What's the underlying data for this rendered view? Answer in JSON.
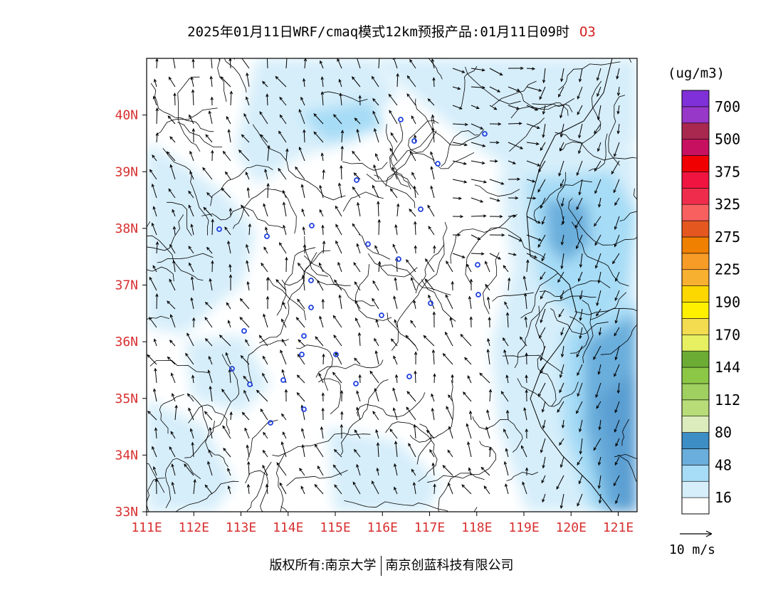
{
  "title": {
    "main": "2025年01月11日WRF/cmaq模式12km预报产品:01月11日09时",
    "species": "O3"
  },
  "map": {
    "lon_range": [
      111,
      121.4
    ],
    "lat_range": [
      33,
      41
    ],
    "lon_ticks": [
      "111E",
      "112E",
      "113E",
      "114E",
      "115E",
      "116E",
      "117E",
      "118E",
      "119E",
      "120E",
      "121E"
    ],
    "lat_ticks": [
      "33N",
      "34N",
      "35N",
      "36N",
      "37N",
      "38N",
      "39N",
      "40N"
    ],
    "stations_color": "#2040e0"
  },
  "colorbar": {
    "unit": "(ug/m3)",
    "colors": [
      "#ffffff",
      "#d6eefa",
      "#a6dcf6",
      "#6aaedc",
      "#3e8ec6",
      "#dcecbc",
      "#b8dc78",
      "#a0d060",
      "#8cc846",
      "#6cac34",
      "#e6f060",
      "#f4dc50",
      "#fff000",
      "#fcd800",
      "#f8b030",
      "#f89c28",
      "#f08000",
      "#e45820",
      "#f86060",
      "#f02c4c",
      "#f01440",
      "#f00000",
      "#c81060",
      "#a82850",
      "#9838c8",
      "#8030d8"
    ],
    "labels": [
      "16",
      "48",
      "80",
      "112",
      "144",
      "170",
      "190",
      "225",
      "275",
      "325",
      "375",
      "500",
      "700"
    ]
  },
  "wind_ref": {
    "label": "10 m/s",
    "arrow_color": "#000000"
  },
  "footer": {
    "left": "版权所有:南京大学",
    "right": "南京创蓝科技有限公司"
  }
}
